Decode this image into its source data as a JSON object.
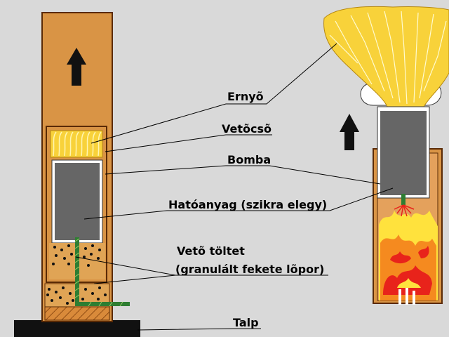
{
  "labels": {
    "canopy": "Ernyõ",
    "launch_tube": "Vetõcsõ",
    "bomb": "Bomba",
    "active_material": "Hatóanyag (szikra elegy)",
    "lift_charge_line1": "Vetõ töltet",
    "lift_charge_line2": "(granulált fekete lõpor)",
    "base": "Talp"
  },
  "colors": {
    "background": "#d9d9d9",
    "tube_orange": "#d99445",
    "tube_outline": "#5a2a05",
    "bomb_gray": "#666666",
    "canopy_yellow": "#f8d23a",
    "powder_tan": "#e0a455",
    "base_black": "#111111",
    "fuse_green": "#2e7d32",
    "flame_red": "#e8231b",
    "flame_orange": "#f58a1f",
    "flame_yellow": "#ffe23d"
  },
  "icons": [
    "up-arrow-icon",
    "up-arrow-icon"
  ]
}
